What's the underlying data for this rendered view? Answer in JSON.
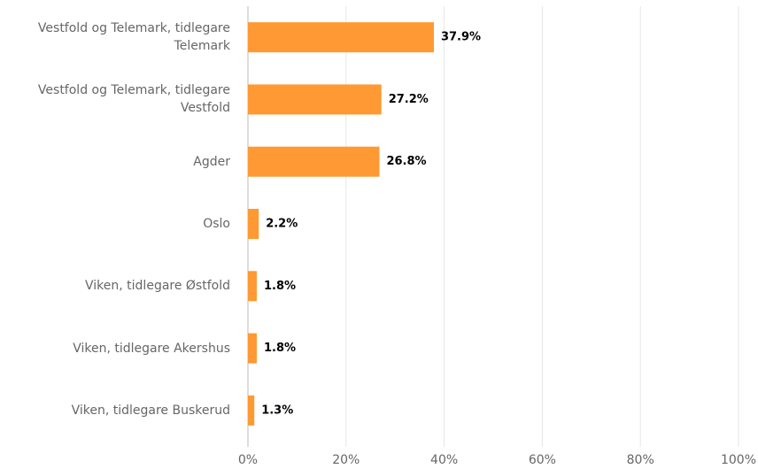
{
  "chart_data": {
    "type": "bar",
    "orientation": "horizontal",
    "categories": [
      "Vestfold og Telemark, tidlegare Telemark",
      "Vestfold og Telemark, tidlegare Vestfold",
      "Agder",
      "Oslo",
      "Viken, tidlegare Østfold",
      "Viken, tidlegare Akershus",
      "Viken, tidlegare Buskerud"
    ],
    "values": [
      37.9,
      27.2,
      26.8,
      2.2,
      1.8,
      1.8,
      1.3
    ],
    "value_labels": [
      "37.9%",
      "27.2%",
      "26.8%",
      "2.2%",
      "1.8%",
      "1.8%",
      "1.3%"
    ],
    "color": "#ff9933",
    "xlim": [
      0,
      100
    ],
    "xticks": [
      {
        "value": 0,
        "label": "0%"
      },
      {
        "value": 20,
        "label": "20%"
      },
      {
        "value": 40,
        "label": "40%"
      },
      {
        "value": 60,
        "label": "60%"
      },
      {
        "value": 80,
        "label": "80%"
      },
      {
        "value": 100,
        "label": "100%"
      }
    ],
    "grid": true
  }
}
